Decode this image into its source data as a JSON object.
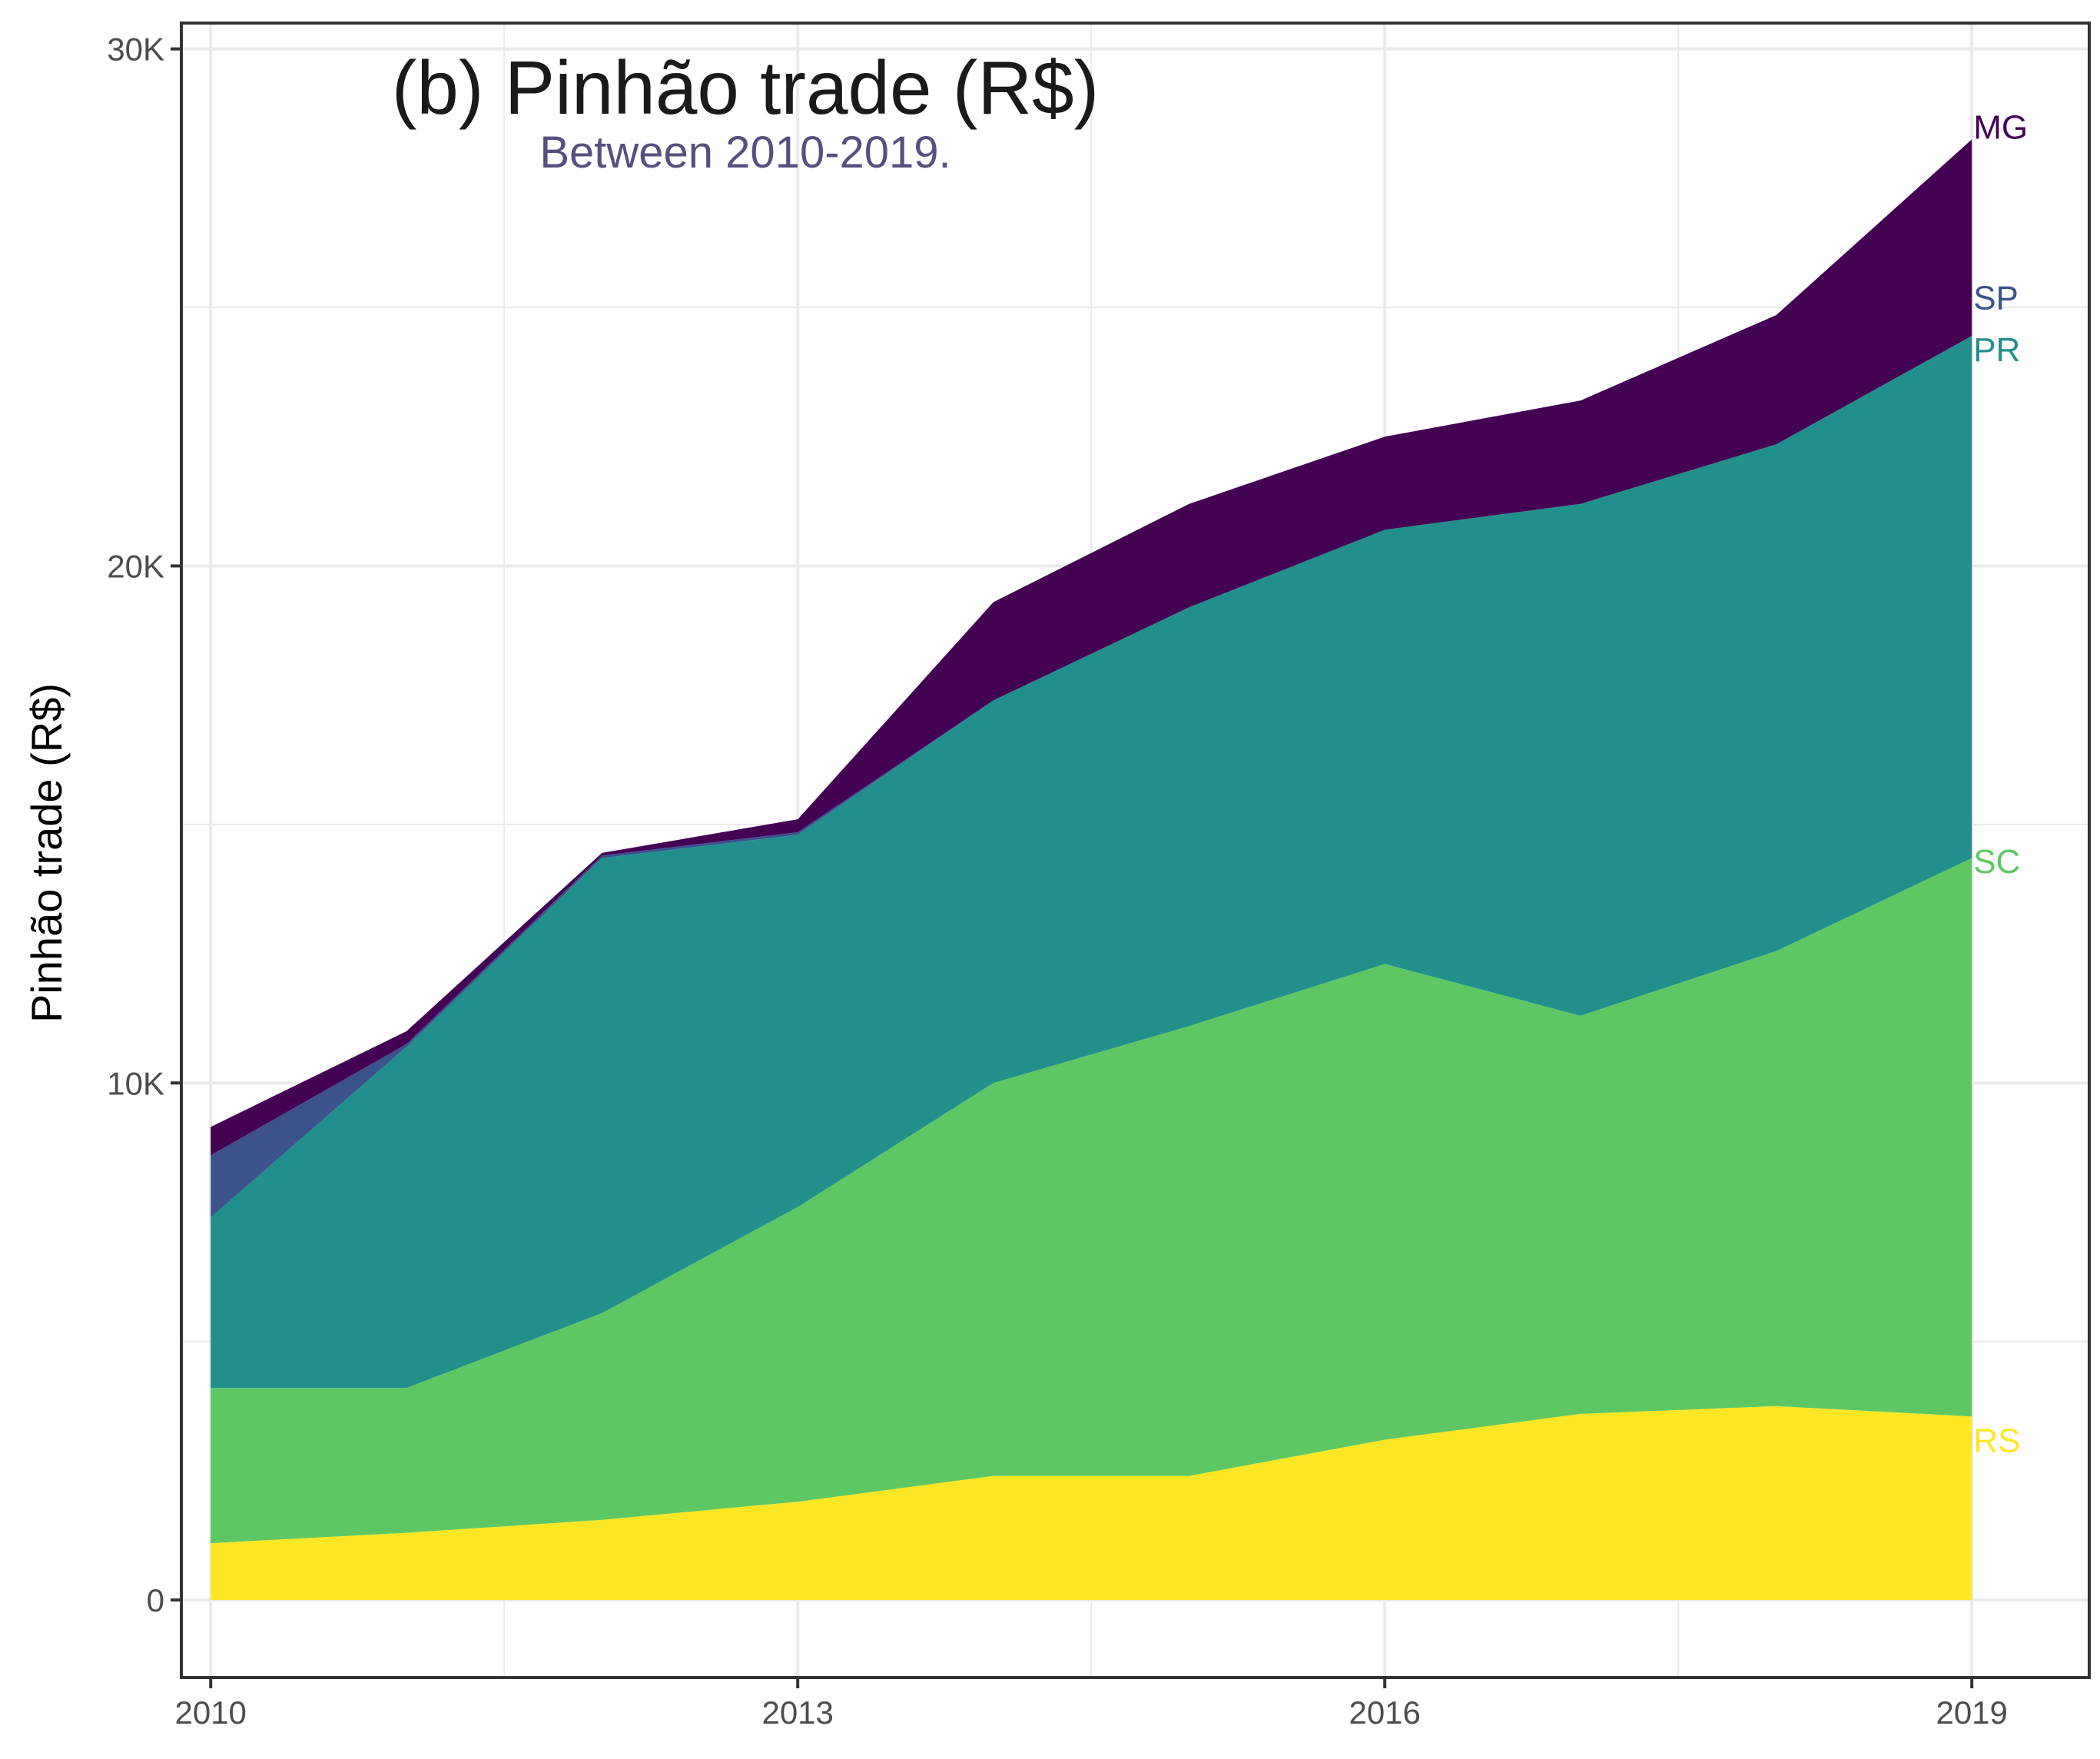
{
  "chart_data": {
    "type": "area",
    "stacked": true,
    "title": "(b) Pinhão trade (R$)",
    "subtitle": "Between 2010-2019.",
    "xlabel": "",
    "ylabel": "Pinhão trade (R$)",
    "x": [
      2010,
      2011,
      2012,
      2013,
      2014,
      2015,
      2016,
      2017,
      2018,
      2019
    ],
    "xticks": [
      2010,
      2013,
      2016,
      2019
    ],
    "xtick_labels": [
      "2010",
      "2013",
      "2016",
      "2019"
    ],
    "ylim": [
      -1500,
      30500
    ],
    "yticks": [
      0,
      10000,
      20000,
      30000
    ],
    "ytick_labels": [
      "0",
      "10K",
      "20K",
      "30K"
    ],
    "grid": true,
    "legend": "none (direct labels at right end)",
    "series": [
      {
        "name": "RS",
        "color": "#FDE725",
        "values": [
          1100,
          1300,
          1550,
          1900,
          2400,
          2400,
          3100,
          3600,
          3750,
          3550
        ]
      },
      {
        "name": "SC",
        "color": "#5DC863",
        "values": [
          3000,
          2800,
          4000,
          5700,
          7600,
          8700,
          9200,
          7700,
          8800,
          10800
        ]
      },
      {
        "name": "PR",
        "color": "#21908C",
        "values": [
          3300,
          6600,
          8800,
          7200,
          7400,
          8100,
          8400,
          9900,
          9800,
          10100
        ]
      },
      {
        "name": "SP",
        "color": "#3B528B",
        "values": [
          1200,
          50,
          50,
          50,
          0,
          0,
          0,
          0,
          0,
          0
        ]
      },
      {
        "name": "MG",
        "color": "#440154",
        "values": [
          550,
          250,
          50,
          250,
          1900,
          2000,
          1800,
          2000,
          2500,
          3800
        ]
      }
    ]
  }
}
